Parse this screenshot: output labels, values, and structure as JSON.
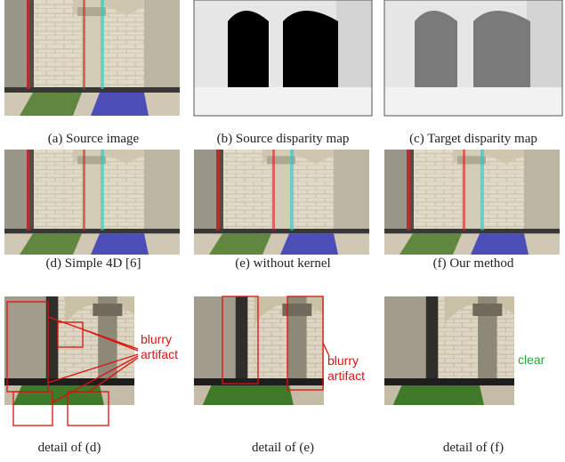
{
  "panels": [
    {
      "caption": "(a) Source image"
    },
    {
      "caption": "(b) Source disparity map"
    },
    {
      "caption": "(c) Target disparity map"
    },
    {
      "caption": "(d) Simple 4D [6]"
    },
    {
      "caption": "(e) without kernel"
    },
    {
      "caption": "(f) Our method"
    },
    {
      "caption": "detail of (d)"
    },
    {
      "caption": "detail of (e)"
    },
    {
      "caption": "detail of (f)"
    }
  ],
  "annotations": [
    {
      "lines": [
        "blurry",
        "artifact"
      ]
    },
    {
      "lines": [
        "blurry",
        "artifact"
      ]
    },
    {
      "lines": [
        "clear"
      ]
    }
  ]
}
